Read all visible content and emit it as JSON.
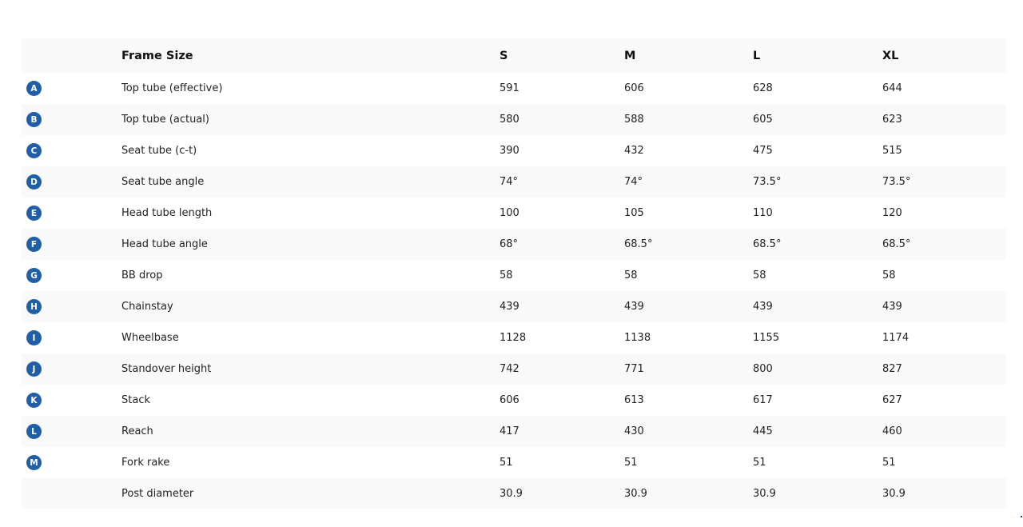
{
  "badge_color": "#1f5fa8",
  "header": {
    "label": "Frame Size",
    "sizes": [
      "S",
      "M",
      "L",
      "XL"
    ]
  },
  "rows": [
    {
      "badge": "A",
      "label": "Top tube (effective)",
      "values": [
        "591",
        "606",
        "628",
        "644"
      ]
    },
    {
      "badge": "B",
      "label": "Top tube (actual)",
      "values": [
        "580",
        "588",
        "605",
        "623"
      ]
    },
    {
      "badge": "C",
      "label": "Seat tube (c-t)",
      "values": [
        "390",
        "432",
        "475",
        "515"
      ]
    },
    {
      "badge": "D",
      "label": "Seat tube angle",
      "values": [
        "74°",
        "74°",
        "73.5°",
        "73.5°"
      ]
    },
    {
      "badge": "E",
      "label": "Head tube length",
      "values": [
        "100",
        "105",
        "110",
        "120"
      ]
    },
    {
      "badge": "F",
      "label": "Head tube angle",
      "values": [
        "68°",
        "68.5°",
        "68.5°",
        "68.5°"
      ]
    },
    {
      "badge": "G",
      "label": "BB drop",
      "values": [
        "58",
        "58",
        "58",
        "58"
      ]
    },
    {
      "badge": "H",
      "label": "Chainstay",
      "values": [
        "439",
        "439",
        "439",
        "439"
      ]
    },
    {
      "badge": "I",
      "label": "Wheelbase",
      "values": [
        "1128",
        "1138",
        "1155",
        "1174"
      ]
    },
    {
      "badge": "J",
      "label": "Standover height",
      "values": [
        "742",
        "771",
        "800",
        "827"
      ]
    },
    {
      "badge": "K",
      "label": "Stack",
      "values": [
        "606",
        "613",
        "617",
        "627"
      ]
    },
    {
      "badge": "L",
      "label": "Reach",
      "values": [
        "417",
        "430",
        "445",
        "460"
      ]
    },
    {
      "badge": "M",
      "label": "Fork rake",
      "values": [
        "51",
        "51",
        "51",
        "51"
      ]
    },
    {
      "badge": "",
      "label": "Post diameter",
      "values": [
        "30.9",
        "30.9",
        "30.9",
        "30.9"
      ]
    }
  ]
}
